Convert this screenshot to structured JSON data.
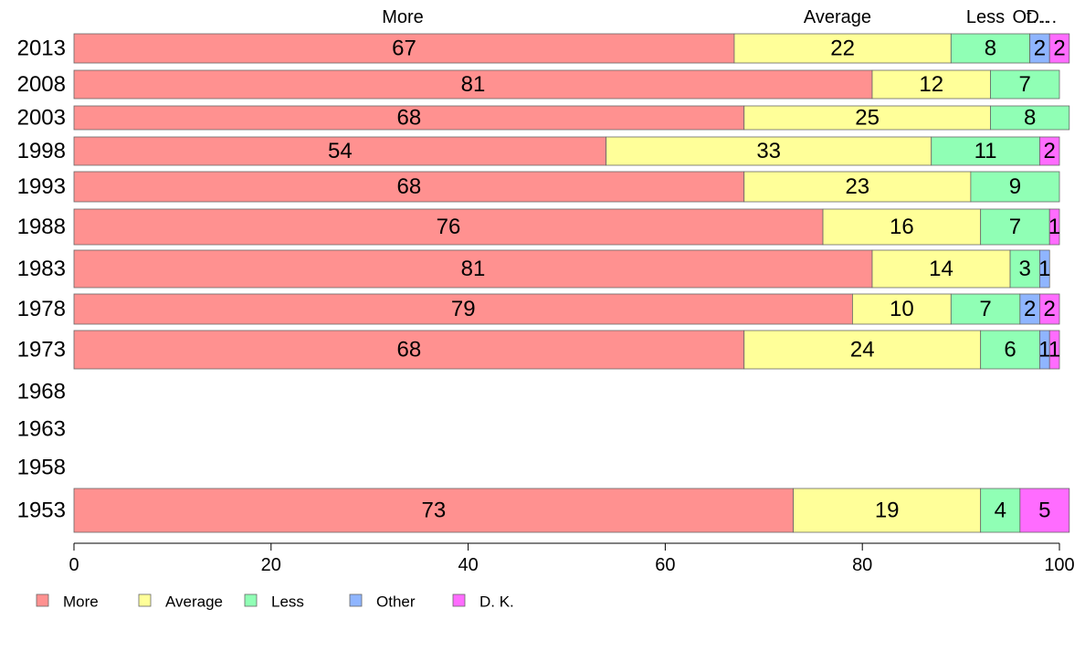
{
  "chart_data": {
    "type": "bar",
    "orientation": "horizontal",
    "stacked": true,
    "title": "",
    "xlabel": "",
    "ylabel": "",
    "xlim": [
      0,
      100
    ],
    "xticks": [
      0,
      20,
      40,
      60,
      80,
      100
    ],
    "grid": false,
    "legend_position": "bottom-left",
    "top_labels": [
      "More",
      "Average",
      "Less",
      "Ot…",
      "D…"
    ],
    "categories": [
      "2013",
      "2008",
      "2003",
      "1998",
      "1993",
      "1988",
      "1983",
      "1978",
      "1973",
      "1968",
      "1963",
      "1958",
      "1953"
    ],
    "series": [
      {
        "name": "More",
        "color": "#ff9190",
        "values": [
          67,
          81,
          68,
          54,
          68,
          76,
          81,
          79,
          68,
          null,
          null,
          null,
          73
        ]
      },
      {
        "name": "Average",
        "color": "#ffff99",
        "values": [
          22,
          12,
          25,
          33,
          23,
          16,
          14,
          10,
          24,
          null,
          null,
          null,
          19
        ]
      },
      {
        "name": "Less",
        "color": "#90ffb5",
        "values": [
          8,
          7,
          8,
          11,
          9,
          7,
          3,
          7,
          6,
          null,
          null,
          null,
          4
        ]
      },
      {
        "name": "Other",
        "color": "#8fb5ff",
        "values": [
          2,
          0,
          0,
          0,
          0,
          0,
          1,
          2,
          1,
          null,
          null,
          null,
          0
        ]
      },
      {
        "name": "D. K.",
        "color": "#ff6cff",
        "values": [
          2,
          0,
          0,
          2,
          0,
          1,
          0,
          2,
          1,
          null,
          null,
          null,
          5
        ]
      }
    ]
  }
}
